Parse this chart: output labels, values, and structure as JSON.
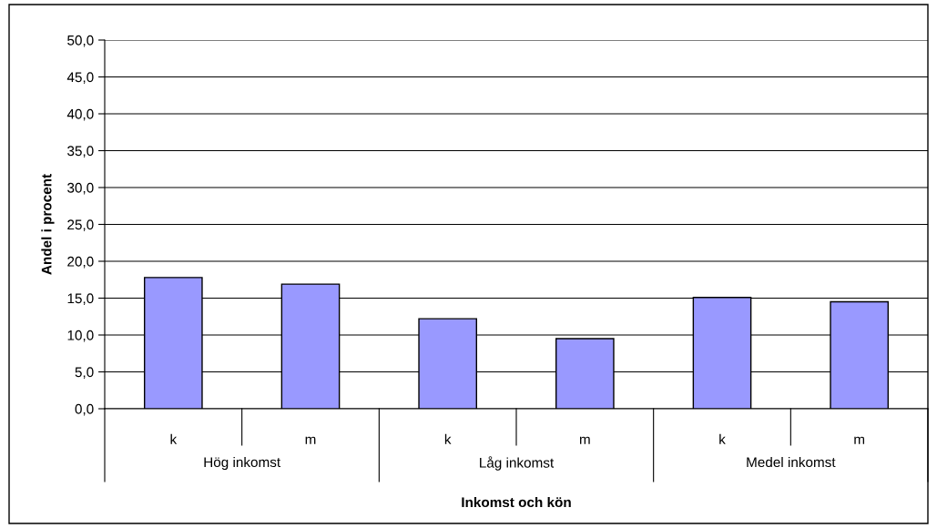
{
  "chart_data": {
    "type": "bar",
    "categories": [
      "k",
      "m",
      "k",
      "m",
      "k",
      "m"
    ],
    "values": [
      17.8,
      16.9,
      12.2,
      9.5,
      15.1,
      14.5
    ],
    "color": "#9999ff",
    "xlabel": "Inkomst och kön",
    "ylabel": "Andel i procent",
    "annotations": [
      "Hög inkomst",
      "Låg inkomst",
      "Medel inkomst"
    ],
    "ylim": [
      0,
      50
    ],
    "yticks": [
      {
        "value": 0,
        "label": "0,0"
      },
      {
        "value": 5,
        "label": "5,0"
      },
      {
        "value": 10,
        "label": "10,0"
      },
      {
        "value": 15,
        "label": "15,0"
      },
      {
        "value": 20,
        "label": "20,0"
      },
      {
        "value": 25,
        "label": "25,0"
      },
      {
        "value": 30,
        "label": "30,0"
      },
      {
        "value": 35,
        "label": "35,0"
      },
      {
        "value": 40,
        "label": "40,0"
      },
      {
        "value": 45,
        "label": "45,0"
      },
      {
        "value": 50,
        "label": "50,0"
      }
    ],
    "grid": "y"
  }
}
